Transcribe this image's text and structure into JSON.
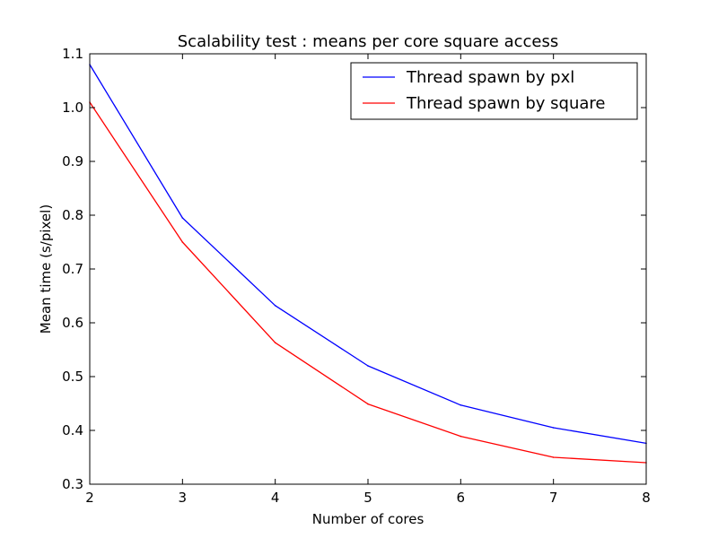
{
  "chart_data": {
    "type": "line",
    "title": "Scalability test : means per core square access",
    "xlabel": "Number of cores",
    "ylabel": "Mean time (s/pixel)",
    "xlim": [
      2,
      8
    ],
    "ylim": [
      0.3,
      1.1
    ],
    "x_ticks": [
      "2",
      "3",
      "4",
      "5",
      "6",
      "7",
      "8"
    ],
    "y_ticks": [
      "0.3",
      "0.4",
      "0.5",
      "0.6",
      "0.7",
      "0.8",
      "0.9",
      "1.0",
      "1.1"
    ],
    "grid": false,
    "legend_position": "top-right",
    "x": [
      2,
      3,
      4,
      5,
      6,
      7,
      8
    ],
    "series": [
      {
        "name": "Thread spawn by pxl",
        "color": "#0000ff",
        "values": [
          1.08,
          0.795,
          0.632,
          0.52,
          0.447,
          0.405,
          0.376
        ]
      },
      {
        "name": "Thread spawn by square",
        "color": "#ff0000",
        "values": [
          1.01,
          0.75,
          0.563,
          0.449,
          0.389,
          0.35,
          0.34
        ]
      }
    ]
  }
}
